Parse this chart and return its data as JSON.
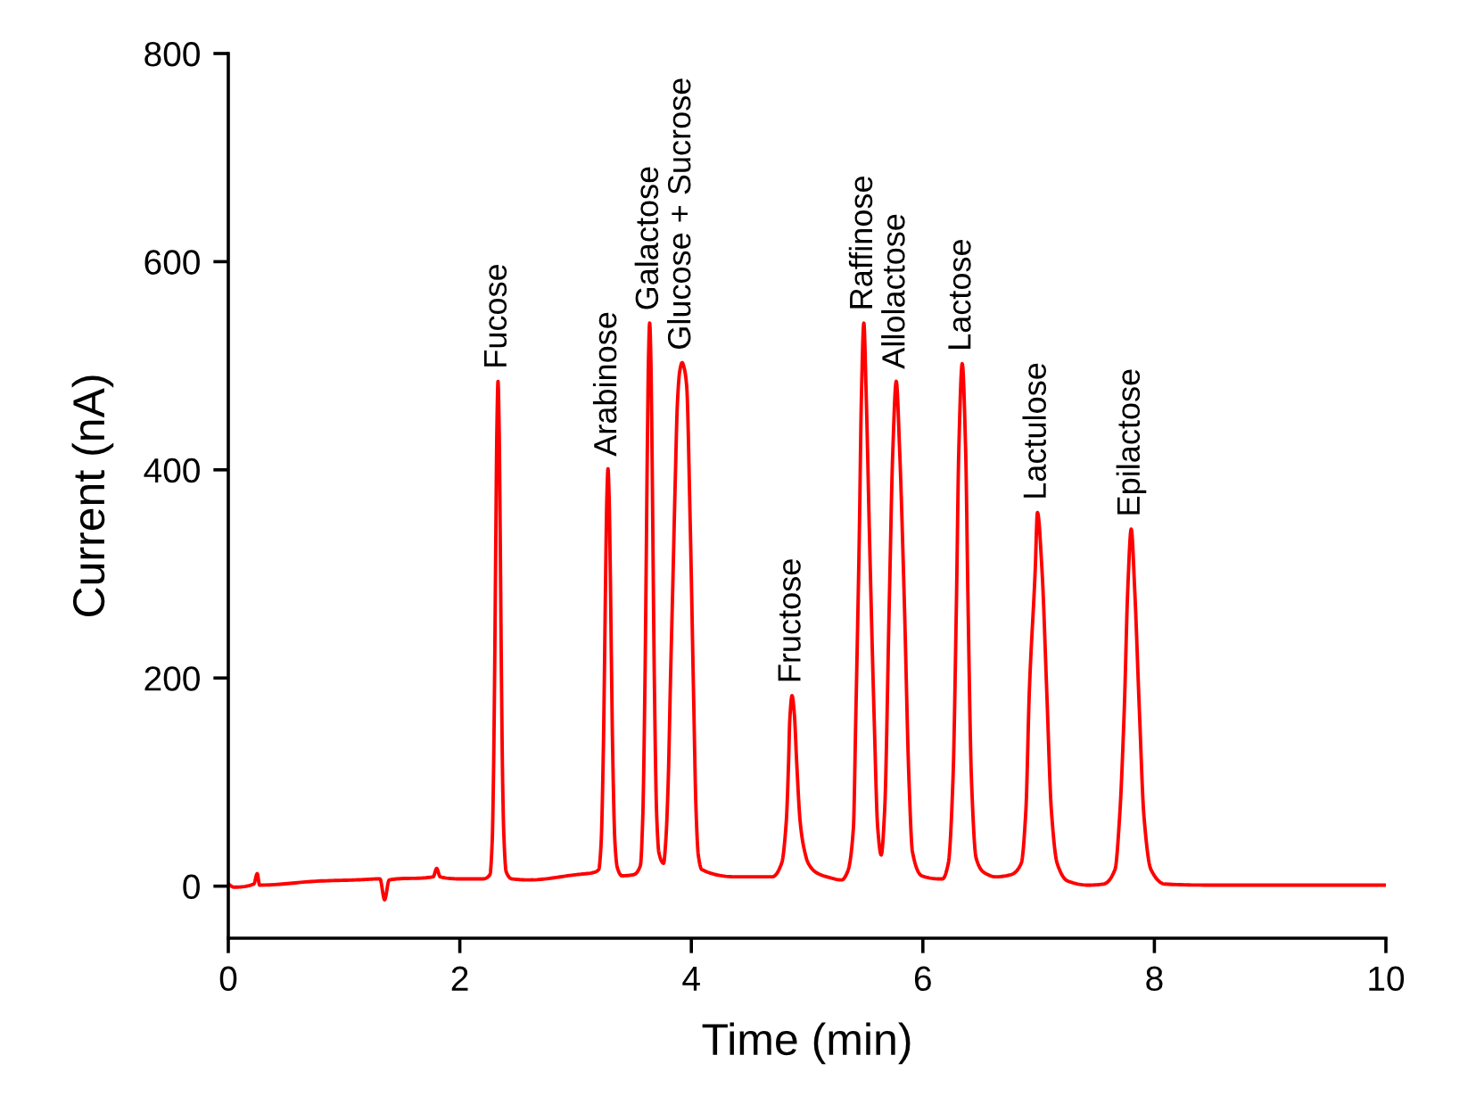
{
  "chart_data": {
    "type": "line",
    "xlabel": "Time (min)",
    "ylabel": "Current (nA)",
    "x": [
      0.0,
      0.05,
      0.22,
      0.25,
      0.27,
      0.8,
      1.1,
      1.31,
      1.35,
      1.39,
      1.77,
      1.8,
      1.83,
      2.0,
      2.2,
      2.26,
      2.28,
      2.29,
      2.3,
      2.31,
      2.32,
      2.33,
      2.34,
      2.35,
      2.36,
      2.37,
      2.38,
      2.4,
      2.45,
      2.6,
      3.0,
      3.15,
      3.2,
      3.22,
      3.24,
      3.25,
      3.26,
      3.27,
      3.28,
      3.29,
      3.3,
      3.31,
      3.32,
      3.34,
      3.36,
      3.4,
      3.5,
      3.56,
      3.58,
      3.6,
      3.61,
      3.62,
      3.63,
      3.64,
      3.65,
      3.66,
      3.67,
      3.68,
      3.7,
      3.72,
      3.76,
      3.78,
      3.8,
      3.82,
      3.84,
      3.86,
      3.88,
      3.9,
      3.92,
      3.94,
      3.96,
      3.99,
      4.02,
      4.04,
      4.06,
      4.09,
      4.4,
      4.7,
      4.78,
      4.82,
      4.84,
      4.85,
      4.87,
      4.89,
      4.91,
      4.94,
      4.97,
      5.01,
      5.08,
      5.17,
      5.3,
      5.35,
      5.4,
      5.42,
      5.45,
      5.47,
      5.49,
      5.51,
      5.54,
      5.58,
      5.61,
      5.64,
      5.67,
      5.71,
      5.74,
      5.77,
      5.8,
      5.84,
      5.88,
      5.91,
      5.99,
      6.14,
      6.17,
      6.22,
      6.26,
      6.29,
      6.31,
      6.34,
      6.37,
      6.39,
      6.42,
      6.46,
      6.53,
      6.63,
      6.76,
      6.85,
      6.89,
      6.92,
      6.97,
      6.99,
      7.03,
      7.07,
      7.11,
      7.16,
      7.25,
      7.43,
      7.56,
      7.66,
      7.7,
      7.74,
      7.77,
      7.8,
      7.83,
      7.87,
      7.91,
      7.97,
      8.09,
      8.5,
      9.0,
      10.0
    ],
    "series": [
      {
        "color": "#ff0000",
        "values": [
          2,
          -1,
          2,
          12,
          1,
          5,
          6,
          7,
          -13,
          6,
          9,
          17,
          9,
          7,
          7,
          11,
          44,
          100,
          196,
          324,
          438,
          485,
          438,
          324,
          196,
          100,
          50,
          14,
          7,
          6,
          11,
          13,
          16,
          40,
          132,
          212,
          302,
          373,
          401,
          373,
          302,
          212,
          132,
          42,
          18,
          10,
          11,
          20,
          65,
          202,
          309,
          422,
          508,
          541,
          508,
          422,
          309,
          202,
          70,
          32,
          22,
          45,
          100,
          199,
          290,
          385,
          465,
          495,
          503,
          497,
          480,
          350,
          180,
          75,
          30,
          16,
          9,
          9,
          22,
          62,
          119,
          159,
          183,
          165,
          119,
          62,
          38,
          22,
          13,
          9,
          6,
          14,
          56,
          159,
          331,
          474,
          541,
          474,
          331,
          159,
          56,
          30,
          73,
          273,
          417,
          485,
          417,
          273,
          102,
          33,
          10,
          7,
          7,
          22,
          102,
          273,
          417,
          502,
          417,
          273,
          102,
          27,
          13,
          9,
          11,
          22,
          73,
          188,
          302,
          359,
          302,
          188,
          73,
          22,
          5,
          1,
          2,
          16,
          67,
          170,
          285,
          343,
          285,
          170,
          67,
          16,
          2,
          1,
          1,
          1
        ]
      }
    ],
    "xlim": [
      0,
      10
    ],
    "ylim": [
      -50,
      800
    ],
    "xticks": [
      0,
      2,
      4,
      6,
      8,
      10
    ],
    "yticks": [
      0,
      200,
      400,
      600,
      800
    ],
    "line_style": "solid",
    "annotations": [
      {
        "text": "Fucose",
        "x": 2.33,
        "y": 485
      },
      {
        "text": "Arabinose",
        "x": 3.28,
        "y": 401
      },
      {
        "text": "Galactose",
        "x": 3.64,
        "y": 541
      },
      {
        "text": "Glucose + Sucrose",
        "x": 3.92,
        "y": 503
      },
      {
        "text": "Fructose",
        "x": 4.87,
        "y": 183
      },
      {
        "text": "Raffinose",
        "x": 5.49,
        "y": 541
      },
      {
        "text": "Allolactose",
        "x": 5.77,
        "y": 485
      },
      {
        "text": "Lactose",
        "x": 6.34,
        "y": 502
      },
      {
        "text": "Lactulose",
        "x": 6.99,
        "y": 359
      },
      {
        "text": "Epilactose",
        "x": 7.8,
        "y": 343
      }
    ]
  }
}
